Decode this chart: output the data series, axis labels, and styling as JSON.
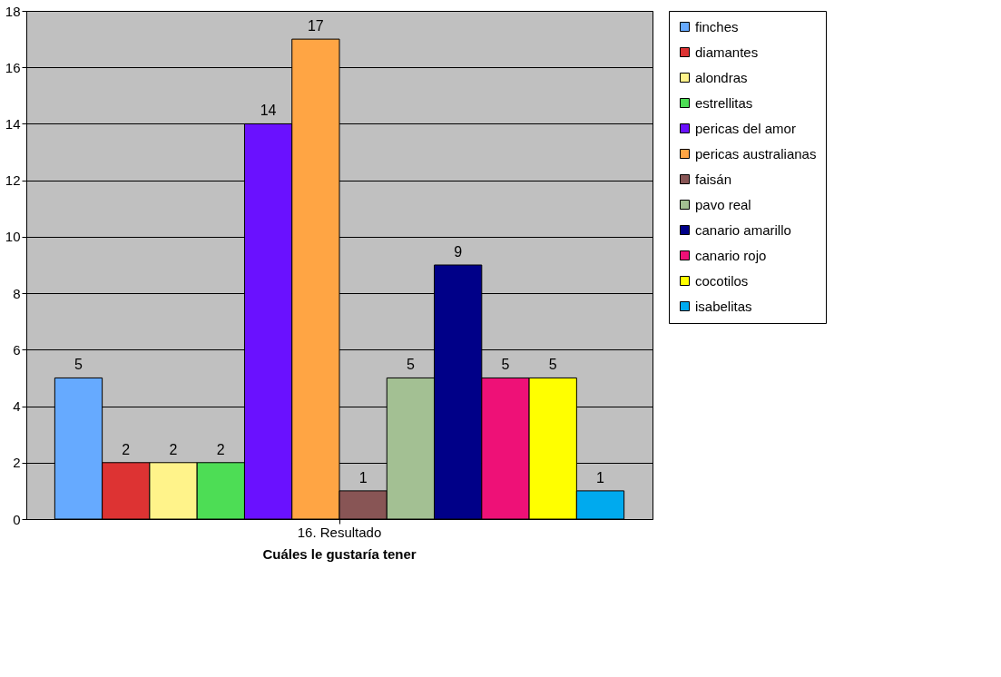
{
  "chart_data": {
    "type": "bar",
    "title": "Cuáles le gustaría tener",
    "categories": [
      "16. Resultado"
    ],
    "series": [
      {
        "name": "finches",
        "color": "#66aaff",
        "values": [
          5
        ]
      },
      {
        "name": "diamantes",
        "color": "#dd3333",
        "values": [
          2
        ]
      },
      {
        "name": "alondras",
        "color": "#fff38a",
        "values": [
          2
        ]
      },
      {
        "name": "estrellitas",
        "color": "#4ddd55",
        "values": [
          2
        ]
      },
      {
        "name": "pericas del amor",
        "color": "#6a11ff",
        "values": [
          14
        ]
      },
      {
        "name": "pericas australianas",
        "color": "#ffa544",
        "values": [
          17
        ]
      },
      {
        "name": "faisán",
        "color": "#885555",
        "values": [
          1
        ]
      },
      {
        "name": "pavo real",
        "color": "#a3c093",
        "values": [
          5
        ]
      },
      {
        "name": "canario amarillo",
        "color": "#000088",
        "values": [
          9
        ]
      },
      {
        "name": "canario rojo",
        "color": "#ee1177",
        "values": [
          5
        ]
      },
      {
        "name": "cocotilos",
        "color": "#ffff00",
        "values": [
          5
        ]
      },
      {
        "name": "isabelitas",
        "color": "#00aaee",
        "values": [
          1
        ]
      }
    ],
    "ylim": [
      0,
      18
    ],
    "yticks": [
      0,
      2,
      4,
      6,
      8,
      10,
      12,
      14,
      16,
      18
    ],
    "grid": "y",
    "legend": "right",
    "data_labels": true
  }
}
